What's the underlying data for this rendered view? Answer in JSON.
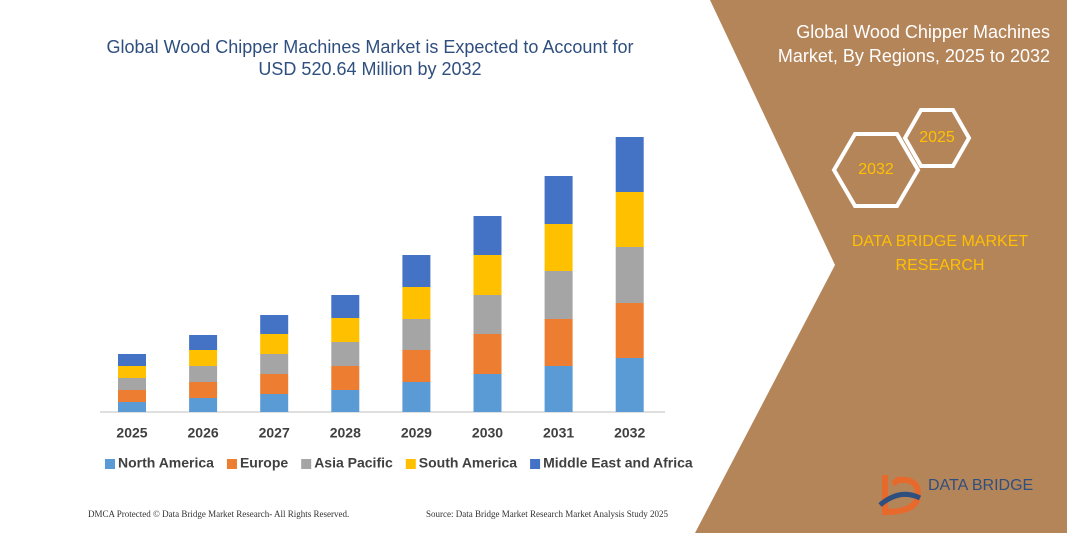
{
  "chart_data": {
    "type": "bar",
    "stacked": true,
    "title": "Global Wood Chipper Machines Market is Expected to Account for USD 520.64 Million by 2032",
    "categories": [
      "2025",
      "2026",
      "2027",
      "2028",
      "2029",
      "2030",
      "2031",
      "2032"
    ],
    "series": [
      {
        "name": "North America",
        "color": "#5b9bd5",
        "values": [
          10,
          14,
          18,
          22,
          30,
          38,
          46,
          54
        ]
      },
      {
        "name": "Europe",
        "color": "#ed7d31",
        "values": [
          12,
          16,
          20,
          24,
          32,
          40,
          47,
          55
        ]
      },
      {
        "name": "Asia Pacific",
        "color": "#a5a5a5",
        "values": [
          12,
          16,
          20,
          24,
          31,
          39,
          48,
          56
        ]
      },
      {
        "name": "South America",
        "color": "#ffc000",
        "values": [
          12,
          16,
          20,
          24,
          32,
          40,
          47,
          55
        ]
      },
      {
        "name": "Middle East and Africa",
        "color": "#4472c4",
        "values": [
          12,
          15,
          19,
          23,
          32,
          39,
          48,
          55
        ]
      }
    ]
  },
  "panel": {
    "title": "Global Wood Chipper Machines Market, By Regions, 2025 to 2032",
    "hexagons": [
      "2025",
      "2032"
    ],
    "brand": "DATA BRIDGE MARKET RESEARCH"
  },
  "logo": "DATA BRIDGE",
  "footer": {
    "left": "DMCA Protected © Data Bridge Market Research- All Rights Reserved.",
    "right": "Source: Data Bridge Market Research Market Analysis Study 2025"
  }
}
